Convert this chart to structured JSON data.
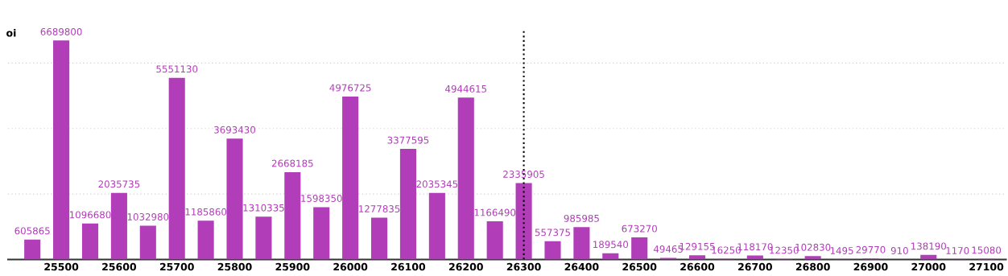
{
  "chart_data": {
    "type": "bar",
    "ylabel": "oi",
    "x": [
      25450,
      25500,
      25550,
      25600,
      25650,
      25700,
      25750,
      25800,
      25850,
      25900,
      25950,
      26000,
      26050,
      26100,
      26150,
      26200,
      26250,
      26300,
      26350,
      26400,
      26450,
      26500,
      26550,
      26600,
      26650,
      26700,
      26750,
      26800,
      26850,
      26900,
      26950,
      27000,
      27050,
      27100
    ],
    "values": [
      605865,
      6689800,
      1096680,
      2035735,
      1032980,
      5551130,
      1185860,
      3693430,
      1310335,
      2668185,
      1598350,
      4976725,
      1277835,
      3377595,
      2035345,
      4944615,
      1166490,
      2335905,
      557375,
      985985,
      189540,
      673270,
      49465,
      129155,
      16250,
      118170,
      12350,
      102830,
      1495,
      29770,
      910,
      138190,
      1170,
      15080
    ],
    "color": "#b13db8",
    "data_labels": true,
    "xlim": [
      25408,
      27134
    ],
    "xticks": [
      25500,
      25600,
      25700,
      25800,
      25900,
      26000,
      26100,
      26200,
      26300,
      26400,
      26500,
      26600,
      26700,
      26800,
      26900,
      27000,
      27100
    ],
    "ylim": [
      0,
      7000000
    ],
    "yticks": [
      {
        "value": 2000000,
        "label": null
      },
      {
        "value": 4000000,
        "label": null
      },
      {
        "value": 6000000,
        "label": null
      }
    ],
    "tick_labels": "x",
    "grid": "y",
    "ref_lines": [
      {
        "axis": "x",
        "value": 26300,
        "label": null,
        "color": "#000000",
        "line_style": "dotted"
      }
    ]
  }
}
